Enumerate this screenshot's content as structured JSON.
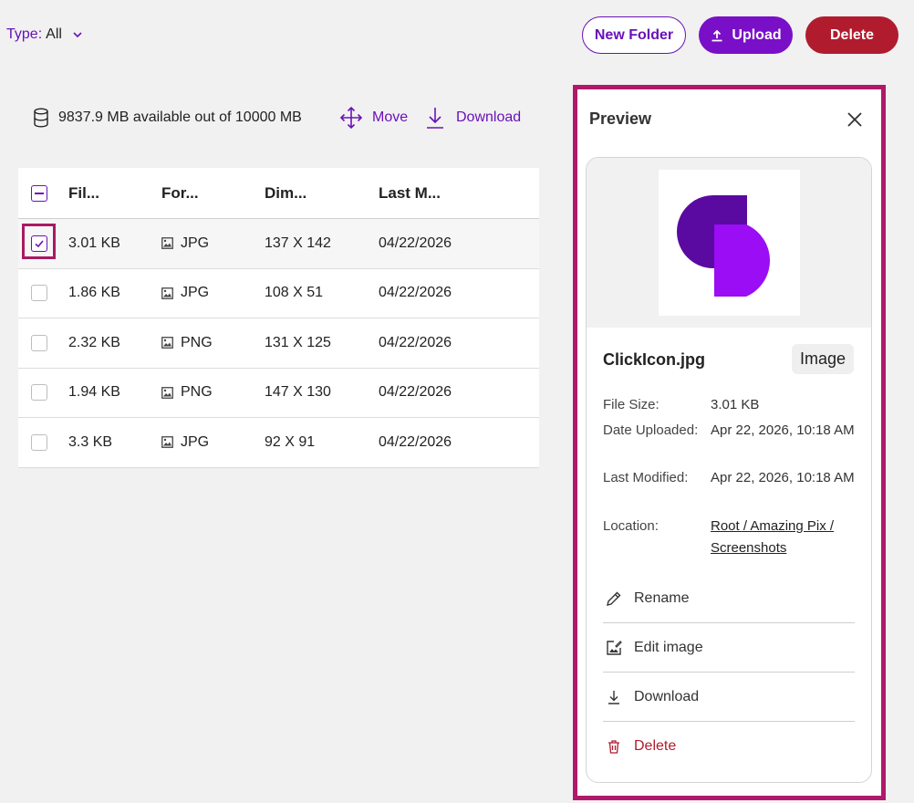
{
  "filter": {
    "label": "Type:",
    "value": "All"
  },
  "buttons": {
    "new_folder": "New Folder",
    "upload": "Upload",
    "delete": "Delete"
  },
  "storage": {
    "text": "9837.9 MB available out of 10000 MB"
  },
  "actions": {
    "move": "Move",
    "download": "Download"
  },
  "table": {
    "headers": {
      "file_size": "Fil...",
      "format": "For...",
      "dimensions": "Dim...",
      "last_modified": "Last M..."
    },
    "rows": [
      {
        "size": "3.01 KB",
        "format": "JPG",
        "dimensions": "137 X 142",
        "modified": "04/22/2026",
        "checked": true
      },
      {
        "size": "1.86 KB",
        "format": "JPG",
        "dimensions": "108 X 51",
        "modified": "04/22/2026",
        "checked": false
      },
      {
        "size": "2.32 KB",
        "format": "PNG",
        "dimensions": "131 X 125",
        "modified": "04/22/2026",
        "checked": false
      },
      {
        "size": "1.94 KB",
        "format": "PNG",
        "dimensions": "147 X 130",
        "modified": "04/22/2026",
        "checked": false
      },
      {
        "size": "3.3 KB",
        "format": "JPG",
        "dimensions": "92 X 91",
        "modified": "04/22/2026",
        "checked": false
      }
    ]
  },
  "preview": {
    "title": "Preview",
    "file_name": "ClickIcon.jpg",
    "type_tag": "Image",
    "meta": {
      "file_size_label": "File Size:",
      "file_size": "3.01 KB",
      "uploaded_label": "Date Uploaded:",
      "uploaded": "Apr 22, 2026, 10:18 AM",
      "modified_label": "Last Modified:",
      "modified": "Apr 22, 2026, 10:18 AM",
      "location_label": "Location:",
      "location": "Root / Amazing Pix / Screenshots"
    },
    "menu": {
      "rename": "Rename",
      "edit_image": "Edit image",
      "download": "Download",
      "delete": "Delete"
    }
  },
  "colors": {
    "accent": "#6a12b8",
    "danger": "#b01c2e",
    "highlight": "#b0196a"
  }
}
